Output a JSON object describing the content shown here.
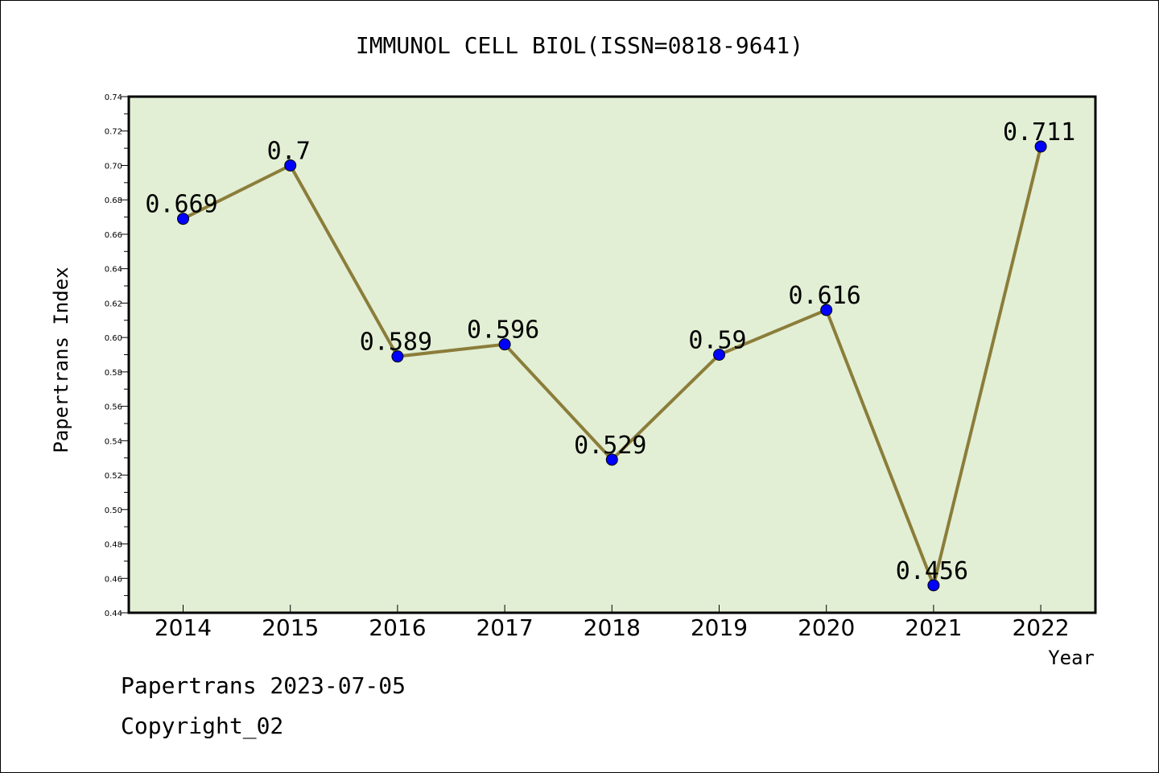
{
  "chart_data": {
    "type": "line",
    "title": "IMMUNOL CELL BIOL(ISSN=0818-9641)",
    "xlabel": "Year",
    "ylabel": "Papertrans Index",
    "categories": [
      "2014",
      "2015",
      "2016",
      "2017",
      "2018",
      "2019",
      "2020",
      "2021",
      "2022"
    ],
    "values": [
      0.669,
      0.7,
      0.589,
      0.596,
      0.529,
      0.59,
      0.616,
      0.456,
      0.711
    ],
    "data_labels": [
      "0.669",
      "0.7",
      "0.589",
      "0.596",
      "0.529",
      "0.59",
      "0.616",
      "0.456",
      "0.711"
    ],
    "ylim": [
      0.44,
      0.74
    ],
    "yticks": [
      "0.44",
      "0.46",
      "0.48",
      "0.50",
      "0.52",
      "0.54",
      "0.56",
      "0.58",
      "0.60",
      "0.62",
      "0.64",
      "0.66",
      "0.68",
      "0.70",
      "0.72",
      "0.74"
    ],
    "grid": false,
    "colors": {
      "plot_background": "#e2efd5",
      "line": "#8b7d3a",
      "marker": "#0000ff"
    }
  },
  "footer": {
    "line1": "Papertrans 2023-07-05",
    "line2": "Copyright_02"
  }
}
